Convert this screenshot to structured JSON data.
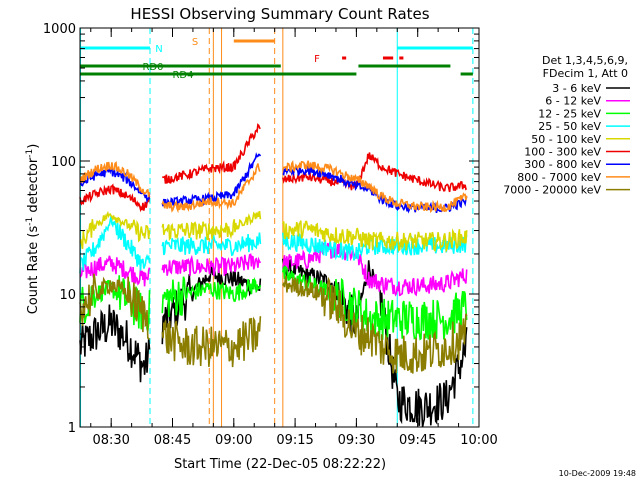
{
  "chart_data": {
    "type": "line",
    "title": "HESSI Observing Summary Count Rates",
    "xlabel": "Start Time (22-Dec-05 08:22:22)",
    "ylabel": "Count Rate (s⁻¹ detector⁻¹)",
    "ylabel_parts": [
      "Count Rate (s",
      "-1",
      " detector",
      "-1",
      ")"
    ],
    "yscale": "log",
    "xlim": [
      "08:22:22",
      "10:00:00"
    ],
    "ylim": [
      1,
      1000
    ],
    "x_tick_labels": [
      "08:30",
      "08:45",
      "09:00",
      "09:15",
      "09:30",
      "09:45",
      "10:00"
    ],
    "y_tick_labels": [
      "1",
      "10",
      "100",
      "1000"
    ],
    "timestamp": "10-Dec-2009 19:48",
    "legend": {
      "header": [
        "Det 1,3,4,5,6,9,",
        "FDecim 1, Att 0"
      ],
      "entries": [
        {
          "label": "3 - 6 keV",
          "color": "#000000"
        },
        {
          "label": "6 - 12 keV",
          "color": "#ff00ff"
        },
        {
          "label": "12 - 25 keV",
          "color": "#00ff00"
        },
        {
          "label": "25 - 50 keV",
          "color": "#00ffff"
        },
        {
          "label": "50 - 100 keV",
          "color": "#d8d800"
        },
        {
          "label": "100 - 300 keV",
          "color": "#ee0000"
        },
        {
          "label": "300 - 800 keV",
          "color": "#0000ff"
        },
        {
          "label": "800 - 7000 keV",
          "color": "#ff8c1a"
        },
        {
          "label": "7000 - 20000 keV",
          "color": "#8b7d00"
        }
      ]
    },
    "time_segments": [
      {
        "start": "08:22:22",
        "end": "08:39:30"
      },
      {
        "start": "08:42:30",
        "end": "09:06:30"
      },
      {
        "start": "09:12:00",
        "end": "09:57:00"
      }
    ],
    "series": [
      {
        "name": "3 - 6 keV",
        "color": "#000000",
        "x": [
          "08:22:22",
          "08:26:00",
          "08:30:00",
          "08:34:00",
          "08:38:00",
          "08:42:30",
          "08:48:00",
          "08:54:00",
          "09:00:00",
          "09:06:00",
          "09:12:00",
          "09:18:00",
          "09:24:00",
          "09:30:00",
          "09:33:00",
          "09:36:00",
          "09:40:00",
          "09:46:00",
          "09:52:00",
          "09:57:00"
        ],
        "values": [
          4,
          5,
          6,
          4.5,
          2.8,
          6,
          9,
          14,
          13,
          11,
          16,
          14,
          12,
          6,
          16,
          9,
          1.6,
          1.4,
          1.6,
          4
        ]
      },
      {
        "name": "6 - 12 keV",
        "color": "#ff00ff",
        "x": [
          "08:22:22",
          "08:26:00",
          "08:30:00",
          "08:34:00",
          "08:38:00",
          "08:42:30",
          "08:48:00",
          "08:54:00",
          "09:00:00",
          "09:06:00",
          "09:12:00",
          "09:18:00",
          "09:24:00",
          "09:30:00",
          "09:33:00",
          "09:36:00",
          "09:40:00",
          "09:46:00",
          "09:52:00",
          "09:57:00"
        ],
        "values": [
          14,
          16,
          17,
          15,
          13,
          16,
          16,
          16,
          16,
          18,
          17,
          18,
          22,
          20,
          13,
          12,
          11.5,
          11.5,
          12,
          14
        ]
      },
      {
        "name": "12 - 25 keV",
        "color": "#00ff00",
        "x": [
          "08:22:22",
          "08:26:00",
          "08:30:00",
          "08:34:00",
          "08:38:00",
          "08:42:30",
          "08:48:00",
          "08:54:00",
          "09:00:00",
          "09:06:00",
          "09:12:00",
          "09:18:00",
          "09:24:00",
          "09:30:00",
          "09:33:00",
          "09:36:00",
          "09:40:00",
          "09:46:00",
          "09:52:00",
          "09:57:00"
        ],
        "values": [
          8,
          10,
          11,
          9,
          7,
          9,
          10,
          11,
          10,
          12,
          14,
          12,
          10,
          8,
          6.5,
          6.5,
          6.5,
          6.5,
          6.5,
          8
        ]
      },
      {
        "name": "25 - 50 keV",
        "color": "#00ffff",
        "x": [
          "08:22:22",
          "08:26:00",
          "08:30:00",
          "08:34:00",
          "08:38:00",
          "08:42:30",
          "08:48:00",
          "08:54:00",
          "09:00:00",
          "09:06:00",
          "09:12:00",
          "09:18:00",
          "09:24:00",
          "09:30:00",
          "09:33:00",
          "09:36:00",
          "09:40:00",
          "09:46:00",
          "09:52:00",
          "09:57:00"
        ],
        "values": [
          16,
          22,
          36,
          24,
          16,
          23,
          23,
          23,
          23,
          25,
          25,
          24,
          22,
          20,
          23,
          23,
          23,
          23,
          23,
          24
        ]
      },
      {
        "name": "50 - 100 keV",
        "color": "#d8d800",
        "x": [
          "08:22:22",
          "08:26:00",
          "08:30:00",
          "08:34:00",
          "08:38:00",
          "08:42:30",
          "08:48:00",
          "08:54:00",
          "09:00:00",
          "09:06:00",
          "09:12:00",
          "09:18:00",
          "09:24:00",
          "09:30:00",
          "09:33:00",
          "09:36:00",
          "09:40:00",
          "09:46:00",
          "09:52:00",
          "09:57:00"
        ],
        "values": [
          24,
          33,
          40,
          33,
          28,
          30,
          30,
          30,
          31,
          40,
          30,
          31,
          28,
          27,
          25,
          25,
          25,
          25,
          25,
          27
        ]
      },
      {
        "name": "100 - 300 keV",
        "color": "#ee0000",
        "x": [
          "08:22:22",
          "08:26:00",
          "08:30:00",
          "08:34:00",
          "08:38:00",
          "08:42:30",
          "08:48:00",
          "08:54:00",
          "09:00:00",
          "09:06:00",
          "09:12:00",
          "09:18:00",
          "09:24:00",
          "09:30:00",
          "09:33:00",
          "09:36:00",
          "09:40:00",
          "09:46:00",
          "09:52:00",
          "09:57:00"
        ],
        "values": [
          50,
          56,
          62,
          54,
          45,
          72,
          78,
          88,
          90,
          180,
          72,
          76,
          70,
          64,
          110,
          92,
          80,
          70,
          62,
          66
        ]
      },
      {
        "name": "300 - 800 keV",
        "color": "#0000ff",
        "x": [
          "08:22:22",
          "08:26:00",
          "08:30:00",
          "08:34:00",
          "08:38:00",
          "08:42:30",
          "08:48:00",
          "08:54:00",
          "09:00:00",
          "09:06:00",
          "09:12:00",
          "09:18:00",
          "09:24:00",
          "09:30:00",
          "09:33:00",
          "09:36:00",
          "09:40:00",
          "09:46:00",
          "09:52:00",
          "09:57:00"
        ],
        "values": [
          66,
          78,
          84,
          72,
          56,
          48,
          50,
          52,
          56,
          110,
          84,
          86,
          78,
          64,
          62,
          52,
          46,
          44,
          44,
          50
        ]
      },
      {
        "name": "800 - 7000 keV",
        "color": "#ff8c1a",
        "x": [
          "08:22:22",
          "08:26:00",
          "08:30:00",
          "08:34:00",
          "08:38:00",
          "08:42:30",
          "08:48:00",
          "08:54:00",
          "09:00:00",
          "09:06:00",
          "09:12:00",
          "09:18:00",
          "09:24:00",
          "09:30:00",
          "09:33:00",
          "09:36:00",
          "09:40:00",
          "09:46:00",
          "09:52:00",
          "09:57:00"
        ],
        "values": [
          72,
          86,
          94,
          80,
          60,
          46,
          45,
          50,
          48,
          90,
          88,
          94,
          86,
          72,
          66,
          54,
          48,
          45,
          45,
          54
        ]
      },
      {
        "name": "7000 - 20000 keV",
        "color": "#8b7d00",
        "x": [
          "08:22:22",
          "08:26:00",
          "08:30:00",
          "08:34:00",
          "08:38:00",
          "08:42:30",
          "08:48:00",
          "08:54:00",
          "09:00:00",
          "09:06:00",
          "09:12:00",
          "09:18:00",
          "09:24:00",
          "09:30:00",
          "09:33:00",
          "09:36:00",
          "09:40:00",
          "09:46:00",
          "09:52:00",
          "09:57:00"
        ],
        "values": [
          8,
          10,
          12,
          10,
          7,
          5,
          4,
          4,
          4,
          5,
          12,
          11,
          9,
          5,
          5,
          4,
          3.5,
          3.5,
          4,
          5
        ]
      }
    ],
    "flag_bars": [
      {
        "label": "N",
        "color": "#00ffff",
        "segments": [
          [
            "08:22:22",
            "08:39:30"
          ],
          [
            "09:40:00",
            "09:58:30"
          ]
        ]
      },
      {
        "label": "S",
        "color": "#ff8c1a",
        "segments": [
          [
            "09:00:00",
            "09:10:00"
          ]
        ]
      },
      {
        "label": "F",
        "color": "#ee0000",
        "segments": [
          [
            "09:26:30",
            "09:27:30"
          ],
          [
            "09:36:30",
            "09:39:00"
          ],
          [
            "09:40:30",
            "09:41:30"
          ]
        ]
      },
      {
        "label": "RD0",
        "color": "#008000",
        "segments": [
          [
            "08:22:22",
            "09:11:30"
          ],
          [
            "09:30:30",
            "09:53:00"
          ]
        ]
      },
      {
        "label": "RD4",
        "color": "#008000",
        "segments": [
          [
            "08:22:22",
            "09:30:00"
          ],
          [
            "09:55:30",
            "09:58:30"
          ]
        ]
      }
    ],
    "vertical_markers": [
      {
        "time": "08:39:30",
        "color": "#00ffff",
        "style": "dashed"
      },
      {
        "time": "09:58:30",
        "color": "#00ffff",
        "style": "dashed"
      },
      {
        "time": "09:40:00",
        "color": "#00ffff",
        "style": "solid"
      },
      {
        "time": "08:22:30",
        "color": "#00ffff",
        "style": "solid"
      },
      {
        "time": "08:54:00",
        "color": "#ff8c1a",
        "style": "dashed"
      },
      {
        "time": "08:55:00",
        "color": "#ff8c1a",
        "style": "solid"
      },
      {
        "time": "08:57:00",
        "color": "#ff8c1a",
        "style": "solid"
      },
      {
        "time": "09:10:00",
        "color": "#ff8c1a",
        "style": "dashed"
      },
      {
        "time": "09:12:00",
        "color": "#ff8c1a",
        "style": "solid"
      }
    ]
  }
}
